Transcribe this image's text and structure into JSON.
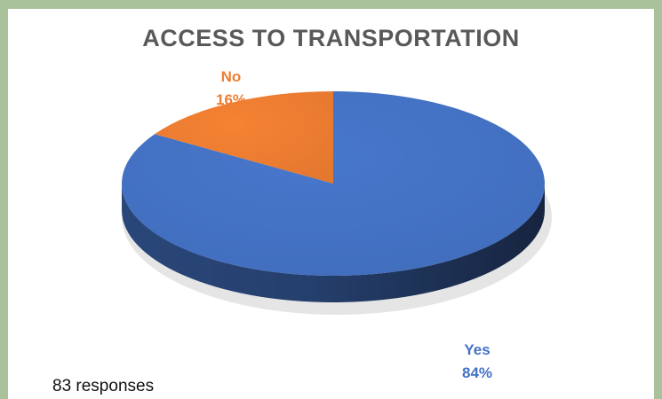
{
  "chart_data": {
    "type": "pie",
    "title": "ACCESS TO TRANSPORTATION",
    "slices": [
      {
        "label": "Yes",
        "value": 84,
        "value_label": "84%",
        "color": "#4472c4"
      },
      {
        "label": "No",
        "value": 16,
        "value_label": "16%",
        "color": "#ed7d31"
      }
    ],
    "legend": "none",
    "style": "3d"
  },
  "footnote": "83 responses",
  "colors": {
    "border": "#a9c29c",
    "title": "#595959"
  }
}
